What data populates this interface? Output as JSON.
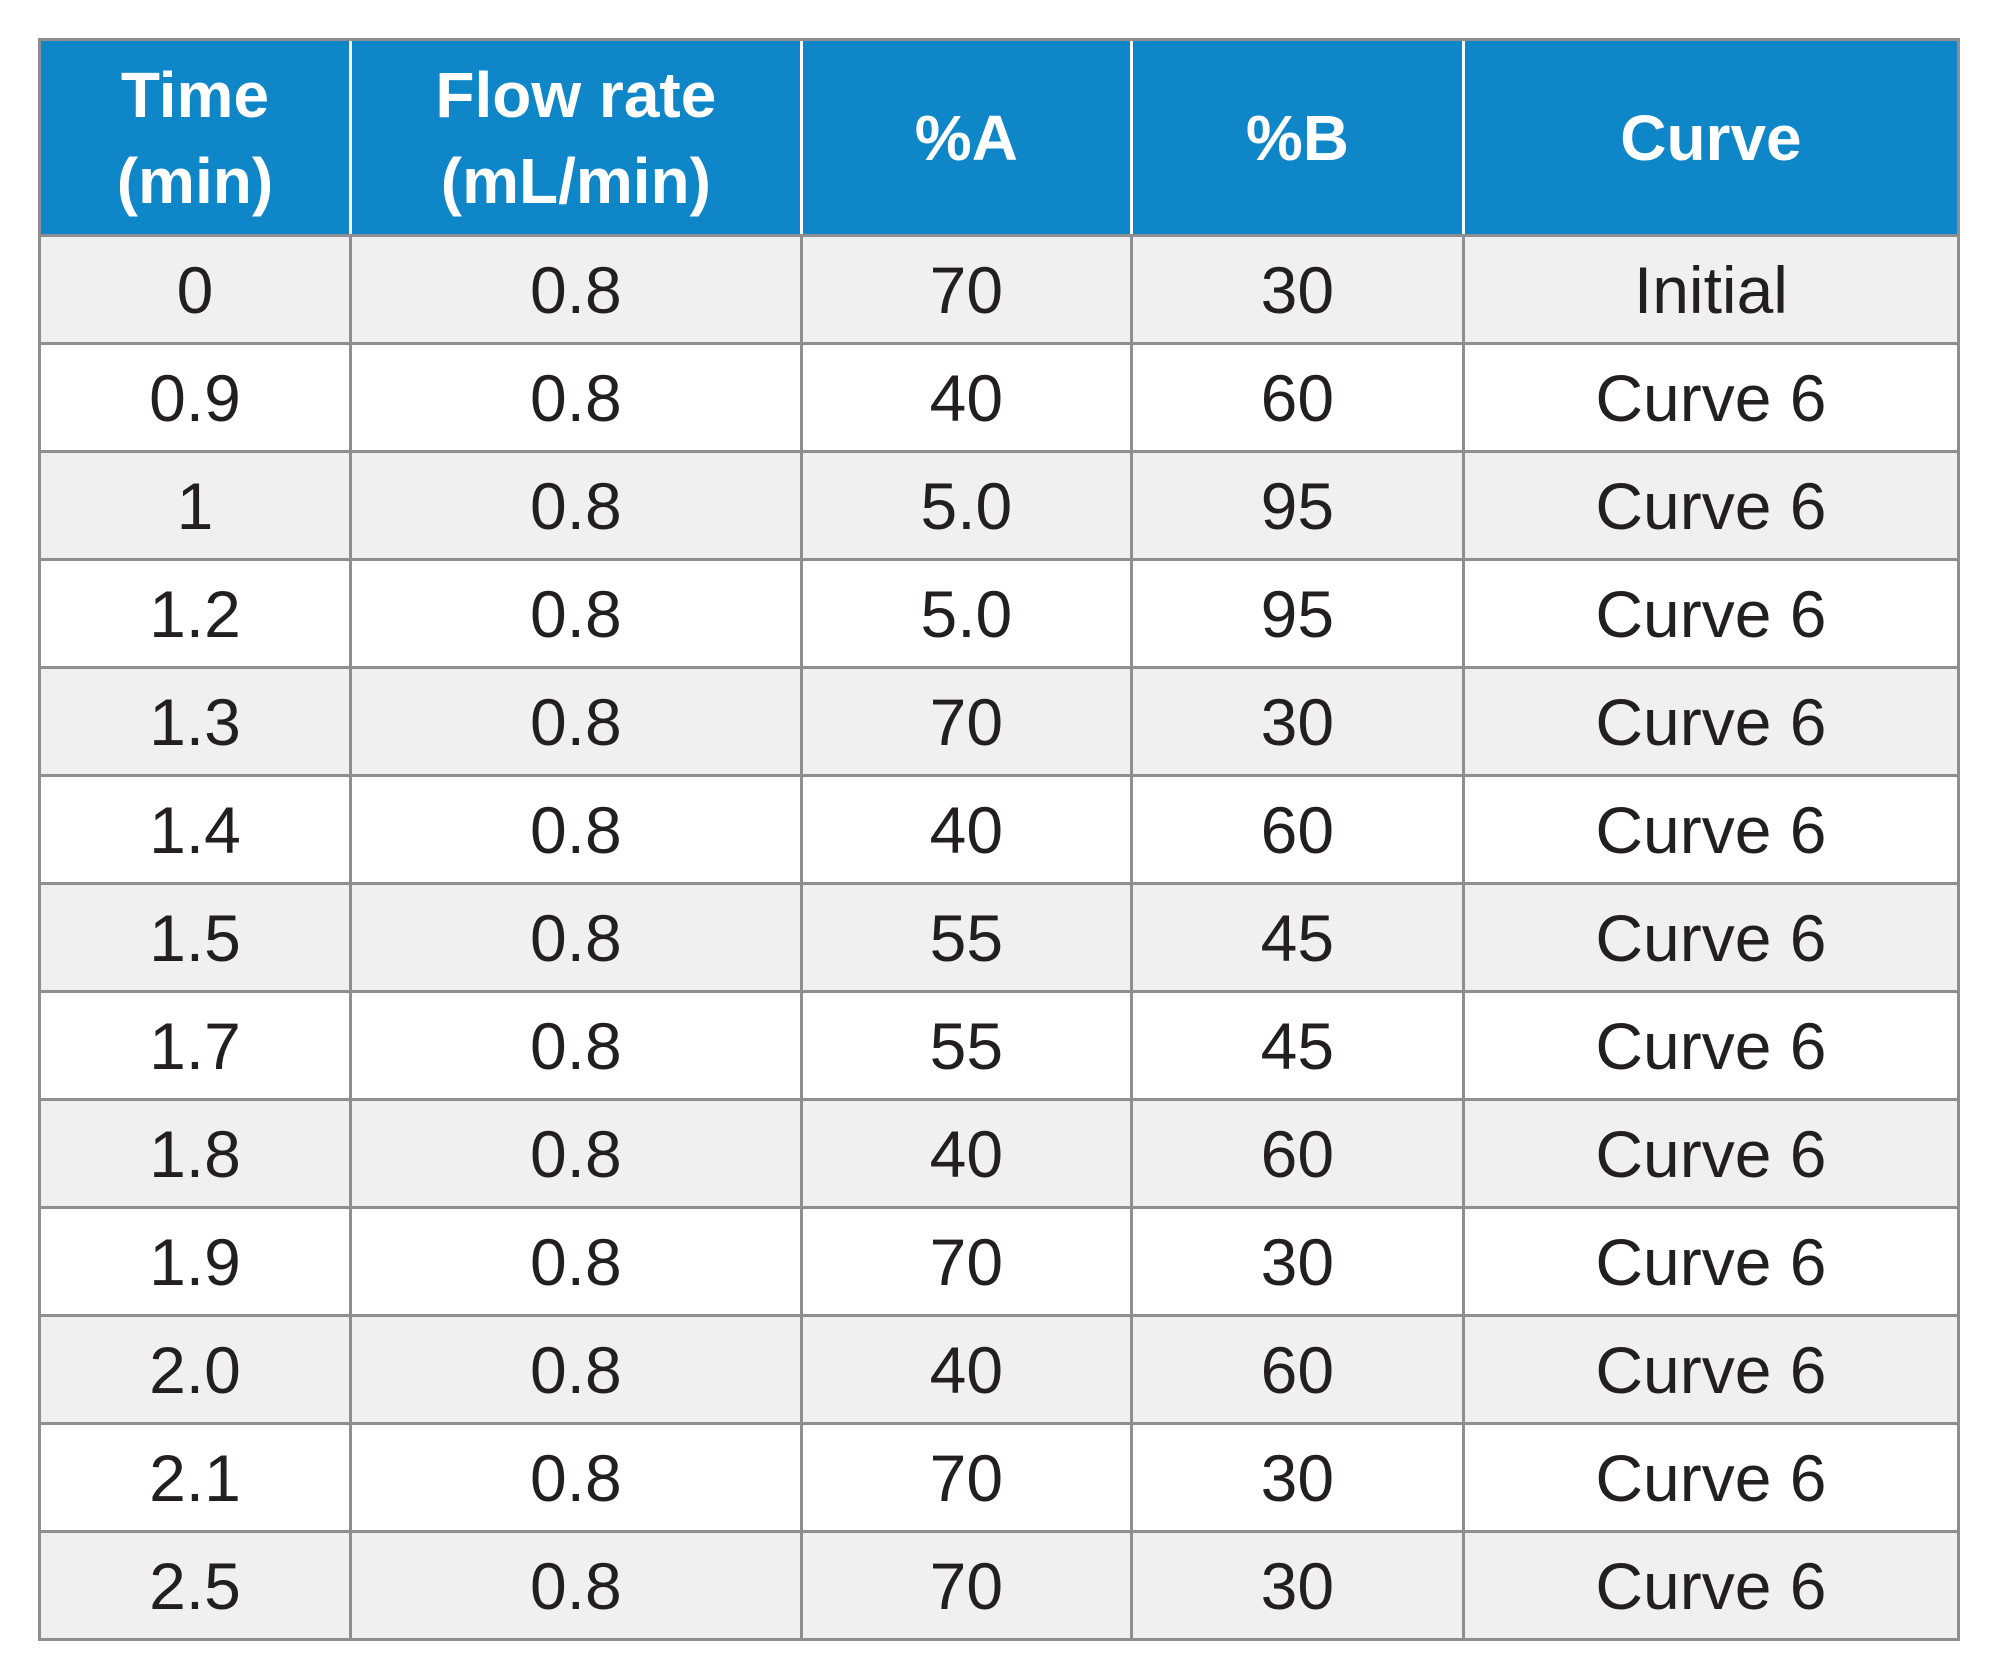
{
  "table": {
    "header": [
      {
        "lines": [
          "Time",
          "(min)"
        ]
      },
      {
        "lines": [
          "Flow rate",
          "(mL/min)"
        ]
      },
      {
        "lines": [
          "%A"
        ]
      },
      {
        "lines": [
          "%B"
        ]
      },
      {
        "lines": [
          "Curve"
        ]
      }
    ],
    "rows": [
      [
        "0",
        "0.8",
        "70",
        "30",
        "Initial"
      ],
      [
        "0.9",
        "0.8",
        "40",
        "60",
        "Curve 6"
      ],
      [
        "1",
        "0.8",
        "5.0",
        "95",
        "Curve 6"
      ],
      [
        "1.2",
        "0.8",
        "5.0",
        "95",
        "Curve 6"
      ],
      [
        "1.3",
        "0.8",
        "70",
        "30",
        "Curve 6"
      ],
      [
        "1.4",
        "0.8",
        "40",
        "60",
        "Curve 6"
      ],
      [
        "1.5",
        "0.8",
        "55",
        "45",
        "Curve 6"
      ],
      [
        "1.7",
        "0.8",
        "55",
        "45",
        "Curve 6"
      ],
      [
        "1.8",
        "0.8",
        "40",
        "60",
        "Curve 6"
      ],
      [
        "1.9",
        "0.8",
        "70",
        "30",
        "Curve 6"
      ],
      [
        "2.0",
        "0.8",
        "40",
        "60",
        "Curve 6"
      ],
      [
        "2.1",
        "0.8",
        "70",
        "30",
        "Curve 6"
      ],
      [
        "2.5",
        "0.8",
        "70",
        "30",
        "Curve 6"
      ]
    ],
    "colors": {
      "header_bg": "#0e86c8",
      "header_text": "#ffffff",
      "row_bg": "#ffffff",
      "row_alt_bg": "#f0f0f1",
      "border": "#8f8f93",
      "text": "#231f20"
    }
  }
}
